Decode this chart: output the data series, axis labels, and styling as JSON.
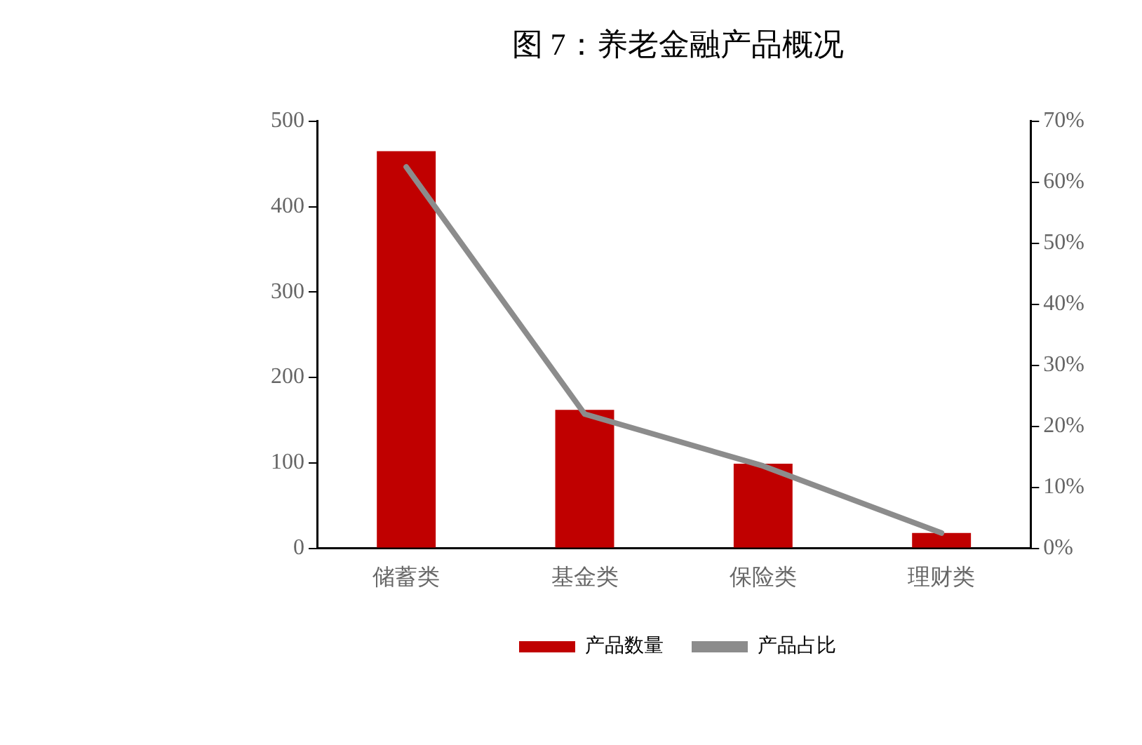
{
  "chart_data": {
    "type": "bar",
    "title": "图 7：养老金融产品概况",
    "categories": [
      "储蓄类",
      "基金类",
      "保险类",
      "理财类"
    ],
    "series": [
      {
        "name": "产品数量",
        "color": "#c00000",
        "values": [
          465,
          162,
          99,
          18
        ]
      },
      {
        "name": "产品占比",
        "type": "line",
        "axis": "y2",
        "color": "#8c8c8c",
        "values": [
          62.5,
          22,
          13.5,
          2.5
        ]
      }
    ],
    "ylim": [
      0,
      500
    ],
    "yticks": [
      0,
      100,
      200,
      300,
      400,
      500
    ],
    "y2lim": [
      0,
      70
    ],
    "y2ticks": [
      {
        "value": 0,
        "label": "0%"
      },
      {
        "value": 10,
        "label": "10%"
      },
      {
        "value": 20,
        "label": "20%"
      },
      {
        "value": 30,
        "label": "30%"
      },
      {
        "value": 40,
        "label": "40%"
      },
      {
        "value": 50,
        "label": "50%"
      },
      {
        "value": 60,
        "label": "60%"
      },
      {
        "value": 70,
        "label": "70%"
      }
    ],
    "grid": false,
    "legend": "bottom",
    "marker": "none"
  }
}
